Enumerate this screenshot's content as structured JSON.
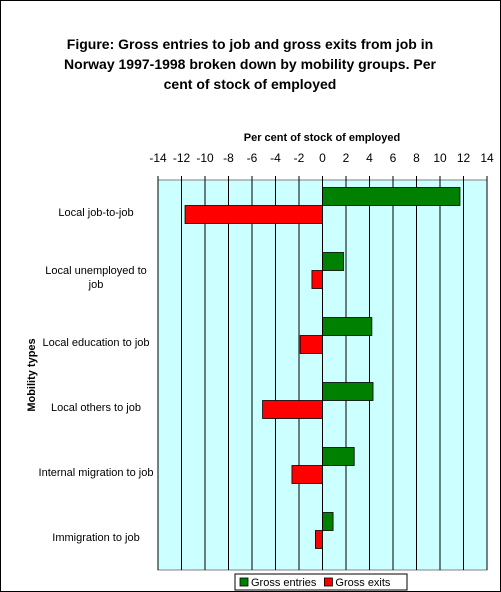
{
  "chart_data": {
    "type": "bar",
    "orientation": "horizontal",
    "title": "Figure: Gross entries to job and gross exits from job in Norway 1997-1998 broken down by mobility groups. Per cent of stock of employed",
    "x_label": "Per cent of stock of employed",
    "y_label": "Mobility types",
    "categories": [
      "Local job-to-job",
      "Local unemployed to job",
      "Local education to job",
      "Local others to job",
      "Internal migration to job",
      "Immigration to job"
    ],
    "series": [
      {
        "name": "Gross entries",
        "color": "#008000",
        "values": [
          11.7,
          1.8,
          4.2,
          4.3,
          2.7,
          0.9
        ]
      },
      {
        "name": "Gross exits",
        "color": "#ff0000",
        "values": [
          -11.7,
          -0.9,
          -1.9,
          -5.1,
          -2.6,
          -0.6
        ]
      }
    ],
    "xlim": [
      -14,
      14
    ],
    "xticks": [
      -14,
      -12,
      -10,
      -8,
      -6,
      -4,
      -2,
      0,
      2,
      4,
      6,
      8,
      10,
      12,
      14
    ],
    "grid": true,
    "legend": "bottom"
  }
}
